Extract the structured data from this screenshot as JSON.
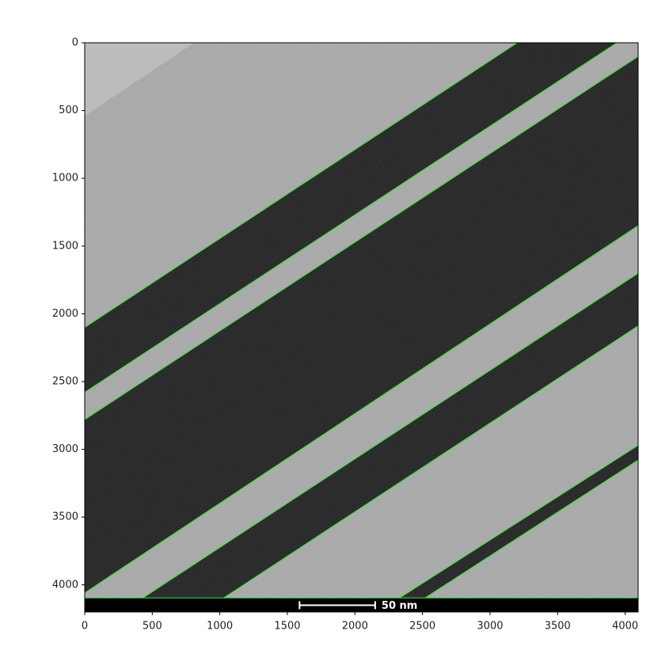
{
  "chart_data": {
    "type": "image",
    "xlim": [
      0,
      4096
    ],
    "ylim": [
      4200,
      0
    ],
    "xticks": [
      0,
      500,
      1000,
      1500,
      2000,
      2500,
      3000,
      3500,
      4000
    ],
    "yticks": [
      0,
      500,
      1000,
      1500,
      2000,
      2500,
      3000,
      3500,
      4000
    ],
    "image_size": [
      4096,
      4096
    ],
    "background_color": "#a9a9a9",
    "band_color": "#1c1c1c",
    "edge_color": "#44dd44",
    "edges": [
      {
        "x": [
          0,
          3200
        ],
        "y": [
          2100,
          0
        ]
      },
      {
        "x": [
          0,
          3940
        ],
        "y": [
          2580,
          0
        ]
      },
      {
        "x": [
          0,
          4096
        ],
        "y": [
          2780,
          100
        ]
      },
      {
        "x": [
          0,
          4096
        ],
        "y": [
          4060,
          1350
        ]
      },
      {
        "x": [
          430,
          4096
        ],
        "y": [
          4096,
          1700
        ]
      },
      {
        "x": [
          1030,
          4096
        ],
        "y": [
          4096,
          2090
        ]
      },
      {
        "x": [
          2330,
          4096
        ],
        "y": [
          4096,
          2970
        ]
      },
      {
        "x": [
          2520,
          4096
        ],
        "y": [
          4096,
          3080
        ]
      }
    ],
    "scale_bar": {
      "label": "50 nm",
      "x": [
        1590,
        2150
      ],
      "y": 4150
    }
  }
}
